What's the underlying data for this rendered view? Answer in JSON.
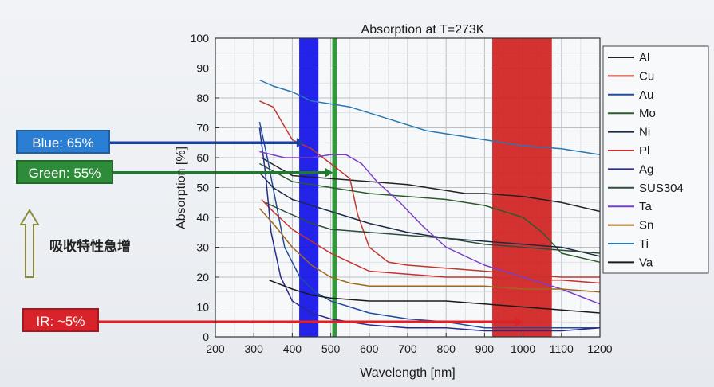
{
  "callouts": {
    "blue": {
      "text": "Blue: 65%",
      "color": "#2a7fd4"
    },
    "green": {
      "text": "Green: 55%",
      "color": "#2e8b3a"
    },
    "ir": {
      "text": "IR: ~5%",
      "color": "#d8232a"
    }
  },
  "note": "吸收特性急增",
  "chart_data": {
    "type": "line",
    "title": "Absorption at T=273K",
    "xlabel": "Wavelength [nm]",
    "ylabel": "Absorption [%]",
    "xlim": [
      200,
      1200
    ],
    "ylim": [
      0,
      100
    ],
    "xticks": [
      200,
      300,
      400,
      500,
      600,
      700,
      800,
      900,
      1000,
      1100,
      1200
    ],
    "yticks": [
      0,
      10,
      20,
      30,
      40,
      50,
      60,
      70,
      80,
      90,
      100
    ],
    "grid": true,
    "legend_position": "right",
    "bands": [
      {
        "name": "blue-band",
        "from": 418,
        "to": 468,
        "color": "#1010e8"
      },
      {
        "name": "green-band",
        "from": 504,
        "to": 516,
        "color": "#1f8f2a"
      },
      {
        "name": "red-band",
        "from": 920,
        "to": 1075,
        "color": "#d01f1f"
      }
    ],
    "reference_lines": [
      {
        "name": "blue-ref",
        "y": 65,
        "x_end": 432,
        "color": "#1a3fa8"
      },
      {
        "name": "green-ref",
        "y": 55,
        "x_end": 506,
        "color": "#1e7a2e"
      },
      {
        "name": "ir-ref",
        "y": 5,
        "x_end": 1000,
        "color": "#d8232a"
      }
    ],
    "series": [
      {
        "name": "Al",
        "color": "#222222",
        "points": [
          [
            320,
            60
          ],
          [
            400,
            54
          ],
          [
            500,
            53
          ],
          [
            600,
            52
          ],
          [
            700,
            51
          ],
          [
            800,
            49
          ],
          [
            850,
            48
          ],
          [
            900,
            48
          ],
          [
            1000,
            47
          ],
          [
            1100,
            45
          ],
          [
            1200,
            42
          ]
        ]
      },
      {
        "name": "Cu",
        "color": "#c0392b",
        "points": [
          [
            315,
            79
          ],
          [
            350,
            77
          ],
          [
            400,
            66
          ],
          [
            450,
            63
          ],
          [
            500,
            58
          ],
          [
            550,
            53
          ],
          [
            570,
            41
          ],
          [
            600,
            30
          ],
          [
            650,
            25
          ],
          [
            700,
            24
          ],
          [
            800,
            23
          ],
          [
            900,
            22
          ],
          [
            1000,
            21
          ],
          [
            1100,
            20
          ],
          [
            1200,
            20
          ]
        ]
      },
      {
        "name": "Au",
        "color": "#1f4e9c",
        "points": [
          [
            315,
            72
          ],
          [
            335,
            60
          ],
          [
            350,
            50
          ],
          [
            380,
            30
          ],
          [
            420,
            20
          ],
          [
            460,
            15
          ],
          [
            500,
            12
          ],
          [
            550,
            10
          ],
          [
            600,
            8
          ],
          [
            700,
            6
          ],
          [
            800,
            5
          ],
          [
            900,
            3
          ],
          [
            1000,
            3
          ],
          [
            1100,
            3
          ],
          [
            1200,
            3
          ]
        ]
      },
      {
        "name": "Mo",
        "color": "#2d5a2d",
        "points": [
          [
            315,
            58
          ],
          [
            400,
            52
          ],
          [
            500,
            50
          ],
          [
            600,
            48
          ],
          [
            700,
            47
          ],
          [
            800,
            46
          ],
          [
            900,
            44
          ],
          [
            1000,
            40
          ],
          [
            1050,
            35
          ],
          [
            1100,
            28
          ],
          [
            1200,
            25
          ]
        ]
      },
      {
        "name": "Ni",
        "color": "#1c2a44",
        "points": [
          [
            315,
            55
          ],
          [
            350,
            50
          ],
          [
            400,
            46
          ],
          [
            500,
            42
          ],
          [
            600,
            38
          ],
          [
            700,
            35
          ],
          [
            800,
            33
          ],
          [
            900,
            32
          ],
          [
            1000,
            31
          ],
          [
            1100,
            30
          ],
          [
            1200,
            27
          ]
        ]
      },
      {
        "name": "Pl",
        "color": "#c8302c",
        "points": [
          [
            320,
            46
          ],
          [
            350,
            42
          ],
          [
            400,
            36
          ],
          [
            450,
            32
          ],
          [
            500,
            28
          ],
          [
            550,
            25
          ],
          [
            600,
            22
          ],
          [
            700,
            21
          ],
          [
            800,
            20
          ],
          [
            900,
            20
          ],
          [
            1000,
            19
          ],
          [
            1100,
            19
          ],
          [
            1200,
            18
          ]
        ]
      },
      {
        "name": "Ag",
        "color": "#2a2a8a",
        "points": [
          [
            315,
            70
          ],
          [
            330,
            55
          ],
          [
            345,
            35
          ],
          [
            370,
            20
          ],
          [
            400,
            12
          ],
          [
            450,
            8
          ],
          [
            500,
            6
          ],
          [
            600,
            4
          ],
          [
            700,
            3
          ],
          [
            800,
            3
          ],
          [
            900,
            2
          ],
          [
            1000,
            2
          ],
          [
            1100,
            2
          ],
          [
            1200,
            3
          ]
        ]
      },
      {
        "name": "SUS304",
        "color": "#2e4d3c",
        "points": [
          [
            330,
            45
          ],
          [
            380,
            42
          ],
          [
            450,
            38
          ],
          [
            500,
            36
          ],
          [
            600,
            35
          ],
          [
            700,
            34
          ],
          [
            800,
            33
          ],
          [
            900,
            31
          ],
          [
            1000,
            30
          ],
          [
            1100,
            29
          ],
          [
            1200,
            28
          ]
        ]
      },
      {
        "name": "Ta",
        "color": "#7a3fc8",
        "points": [
          [
            315,
            62
          ],
          [
            380,
            60
          ],
          [
            450,
            60
          ],
          [
            500,
            61
          ],
          [
            540,
            61
          ],
          [
            580,
            58
          ],
          [
            620,
            52
          ],
          [
            680,
            45
          ],
          [
            740,
            37
          ],
          [
            800,
            30
          ],
          [
            900,
            24
          ],
          [
            1000,
            20
          ],
          [
            1100,
            16
          ],
          [
            1200,
            11
          ]
        ]
      },
      {
        "name": "Sn",
        "color": "#9b6a1e",
        "points": [
          [
            315,
            43
          ],
          [
            350,
            38
          ],
          [
            400,
            30
          ],
          [
            450,
            24
          ],
          [
            500,
            20
          ],
          [
            550,
            18
          ],
          [
            600,
            17
          ],
          [
            700,
            17
          ],
          [
            800,
            17
          ],
          [
            900,
            17
          ],
          [
            1000,
            16
          ],
          [
            1100,
            16
          ],
          [
            1200,
            15
          ]
        ]
      },
      {
        "name": "Ti",
        "color": "#2a78b0",
        "points": [
          [
            315,
            86
          ],
          [
            350,
            84
          ],
          [
            400,
            82
          ],
          [
            450,
            79
          ],
          [
            500,
            78
          ],
          [
            550,
            77
          ],
          [
            600,
            75
          ],
          [
            650,
            73
          ],
          [
            700,
            71
          ],
          [
            750,
            69
          ],
          [
            800,
            68
          ],
          [
            850,
            67
          ],
          [
            900,
            66
          ],
          [
            950,
            65
          ],
          [
            1000,
            64
          ],
          [
            1100,
            63
          ],
          [
            1200,
            61
          ]
        ]
      },
      {
        "name": "Va",
        "color": "#1a1a1a",
        "points": [
          [
            340,
            19
          ],
          [
            400,
            16
          ],
          [
            450,
            14
          ],
          [
            500,
            13
          ],
          [
            600,
            12
          ],
          [
            700,
            12
          ],
          [
            800,
            12
          ],
          [
            900,
            11
          ],
          [
            1000,
            10
          ],
          [
            1100,
            9
          ],
          [
            1200,
            8
          ]
        ]
      }
    ]
  }
}
